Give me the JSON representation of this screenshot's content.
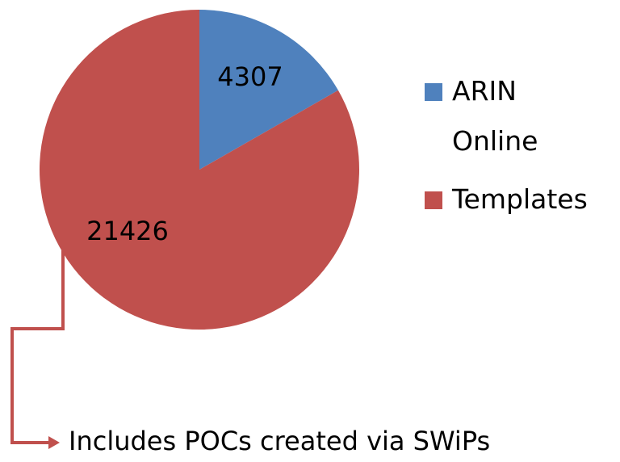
{
  "chart_data": {
    "type": "pie",
    "categories": [
      "ARIN Online",
      "Templates"
    ],
    "values": [
      4307,
      21426
    ],
    "colors": [
      "#4f81bd",
      "#c0504d"
    ],
    "annotation": "Includes POCs created via SWiPs"
  }
}
